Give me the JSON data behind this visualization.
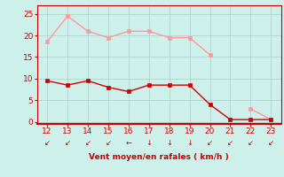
{
  "x": [
    12,
    13,
    14,
    15,
    16,
    17,
    18,
    19,
    20,
    21,
    22,
    23
  ],
  "y_avg": [
    9.5,
    8.5,
    9.5,
    8.0,
    7.0,
    8.5,
    8.5,
    8.5,
    4.0,
    0.5,
    0.5,
    0.5
  ],
  "y_gust": [
    18.5,
    24.5,
    21.0,
    19.5,
    21.0,
    21.0,
    19.5,
    19.5,
    15.5,
    null,
    3.0,
    0.5
  ],
  "avg_color": "#cc0000",
  "gust_color": "#ff9999",
  "bg_color": "#cef0eb",
  "grid_color": "#aacccc",
  "xlabel": "Vent moyen/en rafales ( km/h )",
  "tick_color": "#cc0000",
  "xlim": [
    11.5,
    23.5
  ],
  "ylim": [
    -0.5,
    27
  ],
  "yticks": [
    0,
    5,
    10,
    15,
    20,
    25
  ],
  "xticks": [
    12,
    13,
    14,
    15,
    16,
    17,
    18,
    19,
    20,
    21,
    22,
    23
  ],
  "arrows": [
    "arrow_sw",
    "arrow_sw",
    "arrow_sw",
    "arrow_sw",
    "arrow_w",
    "arrow_s",
    "arrow_s",
    "arrow_s",
    "arrow_sw",
    "arrow_sw",
    "arrow_sw",
    "arrow_sw"
  ]
}
